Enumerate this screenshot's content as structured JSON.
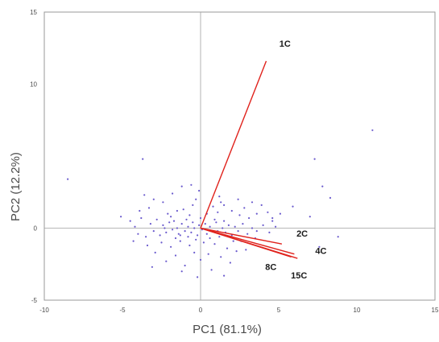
{
  "chart_data": {
    "type": "scatter",
    "xlabel": "PC1 (81.1%)",
    "ylabel": "PC2 (12.2%)",
    "xlim": [
      -10,
      15
    ],
    "ylim": [
      -5,
      15
    ],
    "xticks": [
      "-10",
      "-5",
      "0",
      "5",
      "10",
      "15"
    ],
    "yticks": [
      "-5",
      "0",
      "10",
      "15"
    ],
    "grid": false,
    "points_color": "#6a5acd",
    "vector_color": "#e0221c",
    "scores": [
      [
        -8.5,
        3.4
      ],
      [
        -3.7,
        4.8
      ],
      [
        -3.6,
        2.3
      ],
      [
        -3.3,
        1.4
      ],
      [
        -3.0,
        2.0
      ],
      [
        -2.4,
        1.8
      ],
      [
        -1.8,
        2.4
      ],
      [
        -1.5,
        1.2
      ],
      [
        -1.2,
        2.9
      ],
      [
        -0.6,
        3.0
      ],
      [
        -0.3,
        2.0
      ],
      [
        -0.1,
        2.6
      ],
      [
        0.8,
        1.5
      ],
      [
        1.2,
        2.2
      ],
      [
        1.5,
        1.6
      ],
      [
        2.0,
        1.2
      ],
      [
        2.4,
        2.0
      ],
      [
        2.8,
        1.4
      ],
      [
        3.3,
        1.8
      ],
      [
        3.6,
        1.0
      ],
      [
        3.9,
        1.6
      ],
      [
        4.3,
        1.1
      ],
      [
        4.6,
        0.7
      ],
      [
        5.1,
        1.0
      ],
      [
        5.9,
        1.5
      ],
      [
        7.0,
        0.8
      ],
      [
        7.8,
        2.9
      ],
      [
        8.3,
        2.1
      ],
      [
        7.3,
        4.8
      ],
      [
        11.0,
        6.8
      ],
      [
        8.8,
        -0.6
      ],
      [
        7.6,
        -1.3
      ],
      [
        -5.1,
        0.8
      ],
      [
        -4.5,
        0.5
      ],
      [
        -4.2,
        0.1
      ],
      [
        -4.0,
        -0.4
      ],
      [
        -3.8,
        0.7
      ],
      [
        -3.5,
        -0.6
      ],
      [
        -3.2,
        0.3
      ],
      [
        -3.0,
        -0.2
      ],
      [
        -2.8,
        0.6
      ],
      [
        -2.6,
        -0.5
      ],
      [
        -2.4,
        0.2
      ],
      [
        -2.2,
        -0.3
      ],
      [
        -2.0,
        0.4
      ],
      [
        -1.8,
        -0.1
      ],
      [
        -1.7,
        0.5
      ],
      [
        -1.5,
        0.0
      ],
      [
        -1.4,
        -0.4
      ],
      [
        -1.2,
        0.3
      ],
      [
        -1.0,
        -0.2
      ],
      [
        -0.9,
        0.6
      ],
      [
        -0.8,
        0.1
      ],
      [
        -0.6,
        -0.3
      ],
      [
        -0.5,
        0.4
      ],
      [
        -0.4,
        0.0
      ],
      [
        -0.2,
        -0.5
      ],
      [
        -0.1,
        0.2
      ],
      [
        0.1,
        -0.1
      ],
      [
        0.3,
        0.3
      ],
      [
        0.4,
        -0.4
      ],
      [
        0.6,
        0.1
      ],
      [
        0.8,
        -0.2
      ],
      [
        1.0,
        0.4
      ],
      [
        1.2,
        -0.6
      ],
      [
        1.4,
        0.0
      ],
      [
        1.6,
        -0.3
      ],
      [
        1.8,
        0.2
      ],
      [
        2.0,
        -0.5
      ],
      [
        2.2,
        0.1
      ],
      [
        2.4,
        -0.2
      ],
      [
        2.7,
        0.3
      ],
      [
        3.0,
        -0.4
      ],
      [
        3.3,
        0.0
      ],
      [
        3.6,
        -0.2
      ],
      [
        4.0,
        0.2
      ],
      [
        4.4,
        -0.3
      ],
      [
        4.8,
        0.1
      ],
      [
        -2.1,
        1.0
      ],
      [
        -1.1,
        1.3
      ],
      [
        0.4,
        1.0
      ],
      [
        1.1,
        1.1
      ],
      [
        2.5,
        0.9
      ],
      [
        -2.5,
        -1.0
      ],
      [
        -1.9,
        -1.3
      ],
      [
        -1.3,
        -0.9
      ],
      [
        -0.7,
        -1.2
      ],
      [
        0.2,
        -1.0
      ],
      [
        0.9,
        -1.1
      ],
      [
        1.7,
        -1.4
      ],
      [
        2.6,
        -0.9
      ],
      [
        -3.4,
        -1.2
      ],
      [
        -2.9,
        -1.7
      ],
      [
        -1.6,
        -1.9
      ],
      [
        -0.4,
        -1.7
      ],
      [
        0.5,
        -1.8
      ],
      [
        1.3,
        -2.0
      ],
      [
        2.3,
        -1.6
      ],
      [
        -2.2,
        -2.3
      ],
      [
        -1.0,
        -2.6
      ],
      [
        0.0,
        -2.2
      ],
      [
        1.9,
        -2.4
      ],
      [
        -1.2,
        -3.0
      ],
      [
        0.7,
        -2.9
      ],
      [
        -3.1,
        -2.7
      ],
      [
        -0.2,
        -3.4
      ],
      [
        1.5,
        -3.3
      ],
      [
        -1.6,
        -0.7
      ],
      [
        -0.8,
        -0.6
      ],
      [
        0.0,
        0.7
      ],
      [
        0.9,
        0.6
      ],
      [
        1.5,
        0.5
      ],
      [
        -2.3,
        0.0
      ],
      [
        -1.3,
        -0.5
      ],
      [
        -0.3,
        -0.8
      ],
      [
        0.6,
        -0.7
      ],
      [
        1.1,
        -0.2
      ],
      [
        2.1,
        -0.9
      ],
      [
        -0.7,
        0.9
      ],
      [
        -1.9,
        0.8
      ],
      [
        -4.3,
        -0.9
      ],
      [
        -3.9,
        1.2
      ],
      [
        3.1,
        0.7
      ],
      [
        3.5,
        -0.7
      ],
      [
        4.6,
        0.5
      ],
      [
        2.9,
        -1.5
      ],
      [
        1.3,
        1.8
      ],
      [
        -0.5,
        1.6
      ]
    ],
    "loadings": [
      {
        "label": "1C",
        "x": 4.2,
        "y": 11.6
      },
      {
        "label": "2C",
        "x": 5.2,
        "y": -1.1
      },
      {
        "label": "4C",
        "x": 6.0,
        "y": -1.8
      },
      {
        "label": "8C",
        "x": 5.8,
        "y": -2.0
      },
      {
        "label": "15C",
        "x": 6.2,
        "y": -2.1
      }
    ],
    "loading_labels": [
      {
        "label": "1C",
        "x": 5.4,
        "y": 12.6
      },
      {
        "label": "2C",
        "x": 6.5,
        "y": -0.6
      },
      {
        "label": "4C",
        "x": 7.7,
        "y": -1.8
      },
      {
        "label": "8C",
        "x": 4.5,
        "y": -2.9
      },
      {
        "label": "15C",
        "x": 6.3,
        "y": -3.5
      }
    ]
  }
}
